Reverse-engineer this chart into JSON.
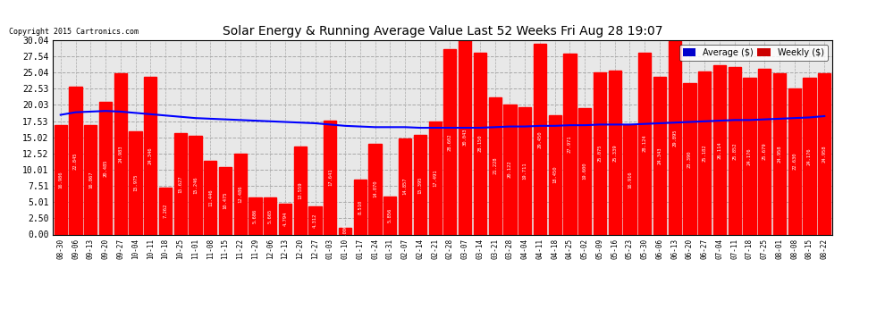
{
  "title": "Solar Energy & Running Average Value Last 52 Weeks Fri Aug 28 19:07",
  "copyright": "Copyright 2015 Cartronics.com",
  "bar_color": "#FF0000",
  "avg_line_color": "#0000FF",
  "background_color": "#FFFFFF",
  "plot_bg_color": "#F0F0F0",
  "ylim": [
    0,
    30.04
  ],
  "yticks": [
    0.0,
    2.5,
    5.01,
    7.51,
    10.01,
    12.52,
    15.02,
    17.53,
    20.03,
    22.53,
    25.04,
    27.54,
    30.04
  ],
  "legend_avg_color": "#0000CC",
  "legend_weekly_color": "#CC0000",
  "categories": [
    "08-30",
    "09-06",
    "09-13",
    "09-20",
    "09-27",
    "10-04",
    "10-11",
    "10-18",
    "10-25",
    "11-01",
    "11-08",
    "11-15",
    "11-22",
    "11-29",
    "12-06",
    "12-13",
    "12-20",
    "12-27",
    "01-03",
    "01-10",
    "01-17",
    "01-24",
    "01-31",
    "02-07",
    "02-14",
    "02-21",
    "02-28",
    "03-07",
    "03-14",
    "03-21",
    "03-28",
    "04-04",
    "04-11",
    "04-18",
    "04-25",
    "05-02",
    "05-09",
    "05-16",
    "05-23",
    "05-30",
    "06-06",
    "06-13",
    "06-20",
    "06-27",
    "07-04",
    "07-11",
    "07-18",
    "07-25",
    "08-01",
    "08-08",
    "08-15",
    "08-22"
  ],
  "weekly_values": [
    16.986,
    22.845,
    16.867,
    20.485,
    24.983,
    15.975,
    24.346,
    7.262,
    15.627,
    15.246,
    11.446,
    10.475,
    12.486,
    5.686,
    5.665,
    4.794,
    13.559,
    4.312,
    17.641,
    1.006,
    8.51,
    14.07,
    5.856,
    14.857,
    15.395,
    17.491,
    28.602,
    30.043,
    28.15,
    21.228,
    20.122,
    19.711,
    29.45,
    18.45,
    27.971,
    19.6,
    25.075,
    25.339,
    16.916,
    28.124,
    24.343,
    29.895,
    23.39,
    25.182,
    26.114,
    25.852,
    24.176,
    25.679,
    24.958,
    22.63,
    24.176,
    24.958
  ],
  "avg_values": [
    18.5,
    18.9,
    19.0,
    19.1,
    19.0,
    18.8,
    18.6,
    18.4,
    18.2,
    18.0,
    17.9,
    17.8,
    17.7,
    17.6,
    17.5,
    17.4,
    17.3,
    17.2,
    17.0,
    16.8,
    16.7,
    16.6,
    16.6,
    16.6,
    16.5,
    16.5,
    16.5,
    16.5,
    16.5,
    16.6,
    16.7,
    16.7,
    16.8,
    16.8,
    16.9,
    16.9,
    17.0,
    17.0,
    17.0,
    17.1,
    17.2,
    17.3,
    17.4,
    17.5,
    17.6,
    17.7,
    17.7,
    17.8,
    17.9,
    18.0,
    18.1,
    18.3
  ]
}
